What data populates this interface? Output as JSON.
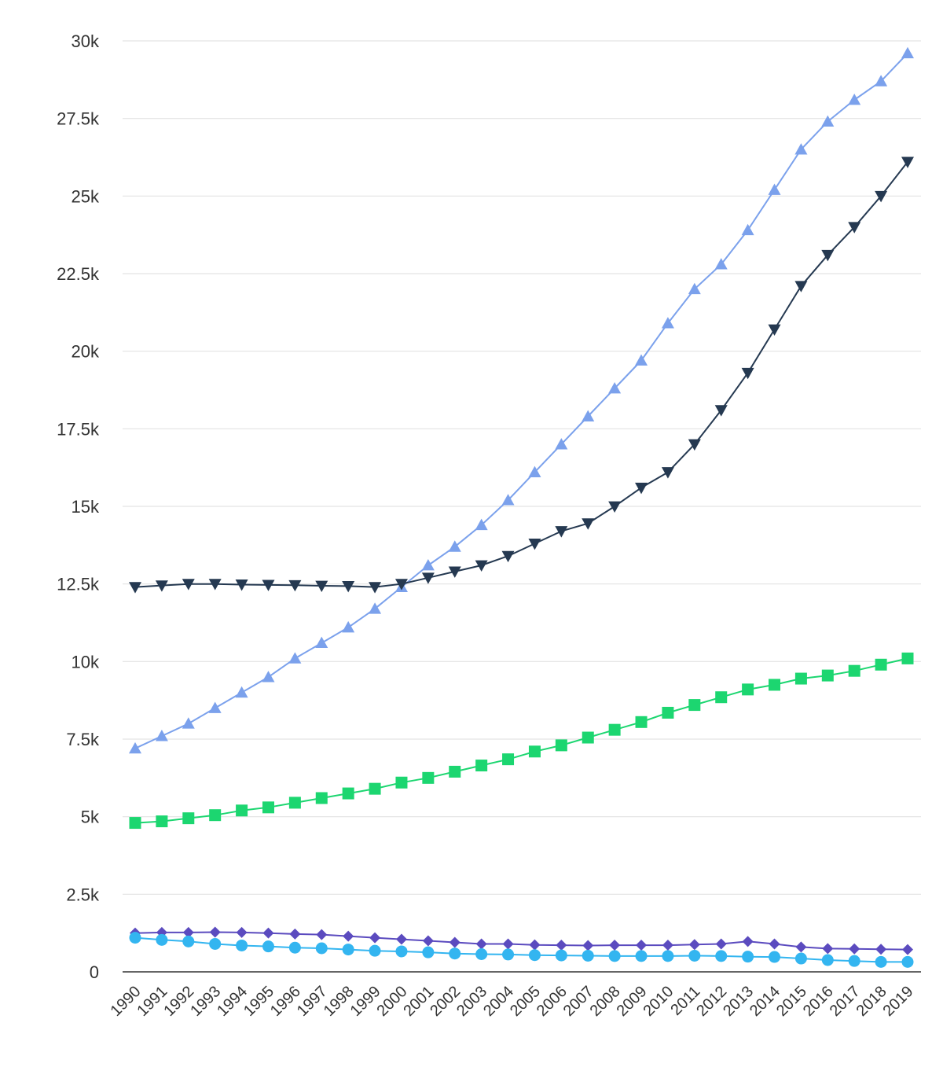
{
  "chart_data": {
    "type": "line",
    "title": "",
    "xlabel": "",
    "ylabel": "",
    "grid": true,
    "legend": "none",
    "ylim": [
      0,
      30000
    ],
    "y_ticks": [
      {
        "value": 0,
        "label": "0"
      },
      {
        "value": 2500,
        "label": "2.5k"
      },
      {
        "value": 5000,
        "label": "5k"
      },
      {
        "value": 7500,
        "label": "7.5k"
      },
      {
        "value": 10000,
        "label": "10k"
      },
      {
        "value": 12500,
        "label": "12.5k"
      },
      {
        "value": 15000,
        "label": "15k"
      },
      {
        "value": 17500,
        "label": "17.5k"
      },
      {
        "value": 20000,
        "label": "20k"
      },
      {
        "value": 22500,
        "label": "22.5k"
      },
      {
        "value": 25000,
        "label": "25k"
      },
      {
        "value": 27500,
        "label": "27.5k"
      },
      {
        "value": 30000,
        "label": "30k"
      }
    ],
    "categories": [
      "1990",
      "1991",
      "1992",
      "1993",
      "1994",
      "1995",
      "1996",
      "1997",
      "1998",
      "1999",
      "2000",
      "2001",
      "2002",
      "2003",
      "2004",
      "2005",
      "2006",
      "2007",
      "2008",
      "2009",
      "2010",
      "2011",
      "2012",
      "2013",
      "2014",
      "2015",
      "2016",
      "2017",
      "2018",
      "2019"
    ],
    "series": [
      {
        "marker": "triangle-up",
        "color": "#7ba1ec",
        "values": [
          7200,
          7600,
          8000,
          8500,
          9000,
          9500,
          10100,
          10600,
          11100,
          11700,
          12400,
          13100,
          13700,
          14400,
          15200,
          16100,
          17000,
          17900,
          18800,
          19700,
          20900,
          22000,
          22800,
          23900,
          25200,
          26500,
          27400,
          28100,
          28700,
          29600
        ]
      },
      {
        "marker": "triangle-down",
        "color": "#253951",
        "values": [
          12400,
          12450,
          12500,
          12500,
          12480,
          12470,
          12460,
          12440,
          12430,
          12400,
          12500,
          12700,
          12900,
          13100,
          13400,
          13800,
          14200,
          14450,
          15000,
          15600,
          16100,
          17000,
          18100,
          19300,
          20700,
          22100,
          23100,
          24000,
          25000,
          26100
        ]
      },
      {
        "marker": "square",
        "color": "#1cd670",
        "values": [
          4800,
          4850,
          4950,
          5050,
          5200,
          5300,
          5450,
          5600,
          5750,
          5900,
          6100,
          6250,
          6450,
          6650,
          6850,
          7100,
          7300,
          7550,
          7800,
          8050,
          8350,
          8600,
          8850,
          9100,
          9250,
          9450,
          9550,
          9700,
          9900,
          10100
        ]
      },
      {
        "marker": "diamond",
        "color": "#5b4bbf",
        "values": [
          1250,
          1270,
          1270,
          1280,
          1270,
          1250,
          1220,
          1200,
          1150,
          1100,
          1050,
          1000,
          950,
          900,
          900,
          870,
          860,
          850,
          860,
          860,
          860,
          880,
          900,
          980,
          900,
          800,
          750,
          740,
          730,
          720
        ]
      },
      {
        "marker": "circle",
        "color": "#33b5f0",
        "values": [
          1100,
          1030,
          980,
          900,
          850,
          820,
          780,
          760,
          720,
          680,
          660,
          630,
          590,
          570,
          560,
          540,
          530,
          520,
          510,
          510,
          510,
          520,
          510,
          490,
          480,
          430,
          380,
          350,
          320,
          320
        ]
      }
    ]
  }
}
